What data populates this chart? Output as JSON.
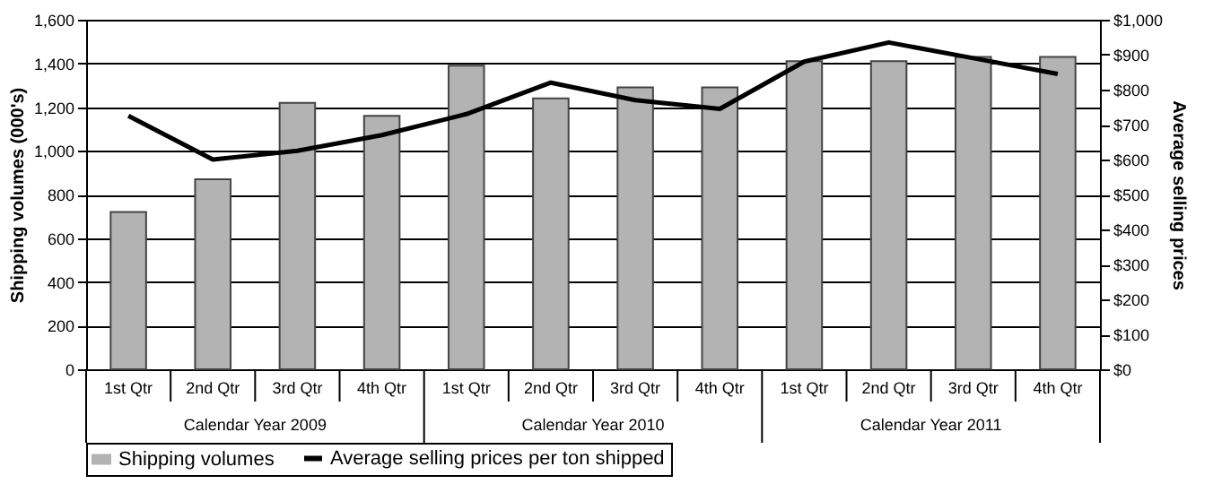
{
  "chart_data": {
    "type": "bar",
    "ylabel": "Shipping volumes (000's)",
    "y2label": "Average selling prices",
    "categories": [
      "1st Qtr",
      "2nd Qtr",
      "3rd Qtr",
      "4th Qtr",
      "1st Qtr",
      "2nd Qtr",
      "3rd Qtr",
      "4th Qtr",
      "1st Qtr",
      "2nd Qtr",
      "3rd Qtr",
      "4th Qtr"
    ],
    "series": [
      {
        "name": "Shipping volumes",
        "color": "#b3b3b3",
        "values": [
          720,
          870,
          1220,
          1160,
          1390,
          1240,
          1290,
          1290,
          1410,
          1410,
          1430,
          1430
        ]
      },
      {
        "name": "Average selling prices per ton shipped",
        "type": "line",
        "axis": "y2",
        "color": "#000000",
        "values": [
          725,
          600,
          625,
          670,
          730,
          820,
          770,
          745,
          880,
          935,
          890,
          845
        ]
      }
    ],
    "ylim": [
      0,
      1600
    ],
    "yticks": [
      0,
      200,
      400,
      600,
      800,
      {
        "value": 1000,
        "label": "1,000"
      },
      {
        "value": 1200,
        "label": "1,200"
      },
      {
        "value": 1400,
        "label": "1,400"
      },
      {
        "value": 1600,
        "label": "1,600"
      }
    ],
    "y2lim": [
      0,
      1000
    ],
    "y2ticks": [
      {
        "value": 0,
        "label": "$0"
      },
      {
        "value": 100,
        "label": "$100"
      },
      {
        "value": 200,
        "label": "$200"
      },
      {
        "value": 300,
        "label": "$300"
      },
      {
        "value": 400,
        "label": "$400"
      },
      {
        "value": 500,
        "label": "$500"
      },
      {
        "value": 600,
        "label": "$600"
      },
      {
        "value": 700,
        "label": "$700"
      },
      {
        "value": 800,
        "label": "$800"
      },
      {
        "value": 900,
        "label": "$900"
      },
      {
        "value": 1000,
        "label": "$1,000"
      }
    ],
    "annotations": [
      "Calendar Year 2009",
      "Calendar Year 2010",
      "Calendar Year 2011"
    ],
    "grid": "y",
    "legend": "bottom"
  }
}
